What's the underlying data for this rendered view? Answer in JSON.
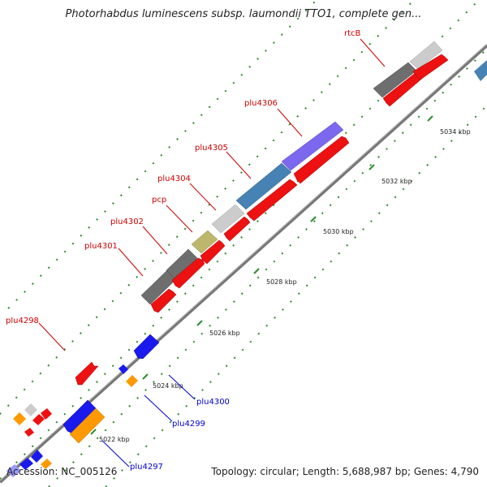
{
  "title": "Photorhabdus luminescens subsp. laumondii TTO1, complete gen...",
  "footer": {
    "accession": "Accession: NC_005126",
    "topology": "Topology: circular; Length: 5,688,987 bp; Genes: 4,790"
  },
  "colors": {
    "backbone": "#888888",
    "tick": "#2e8b2e",
    "label_forward": "#cc0000",
    "label_reverse": "#0000cc"
  },
  "ticks": [
    {
      "label": "5022 kbp"
    },
    {
      "label": "5024 kbp"
    },
    {
      "label": "5026 kbp"
    },
    {
      "label": "5028 kbp"
    },
    {
      "label": "5030 kbp"
    },
    {
      "label": "5032 kbp"
    },
    {
      "label": "5034 kbp"
    }
  ],
  "genes": [
    {
      "name": "plu4297",
      "strand": "reverse",
      "color": "#1a1aee"
    },
    {
      "name": "plu4298",
      "strand": "forward",
      "color": "#ee1111"
    },
    {
      "name": "plu4299",
      "strand": "reverse",
      "color": "#ff9900"
    },
    {
      "name": "plu4300",
      "strand": "reverse",
      "color": "#1a1aee"
    },
    {
      "name": "plu4301",
      "strand": "forward",
      "color": "#6e6e6e"
    },
    {
      "name": "plu4302",
      "strand": "forward",
      "color": "#6e6e6e"
    },
    {
      "name": "pcp",
      "strand": "forward",
      "color": "#bdb76b"
    },
    {
      "name": "plu4304",
      "strand": "forward",
      "color": "#cccccc"
    },
    {
      "name": "plu4305",
      "strand": "forward",
      "color": "#4682b4"
    },
    {
      "name": "plu4306",
      "strand": "forward",
      "color": "#7b68ee"
    },
    {
      "name": "rtcB",
      "strand": "forward",
      "color": "#6e6e6e"
    }
  ]
}
